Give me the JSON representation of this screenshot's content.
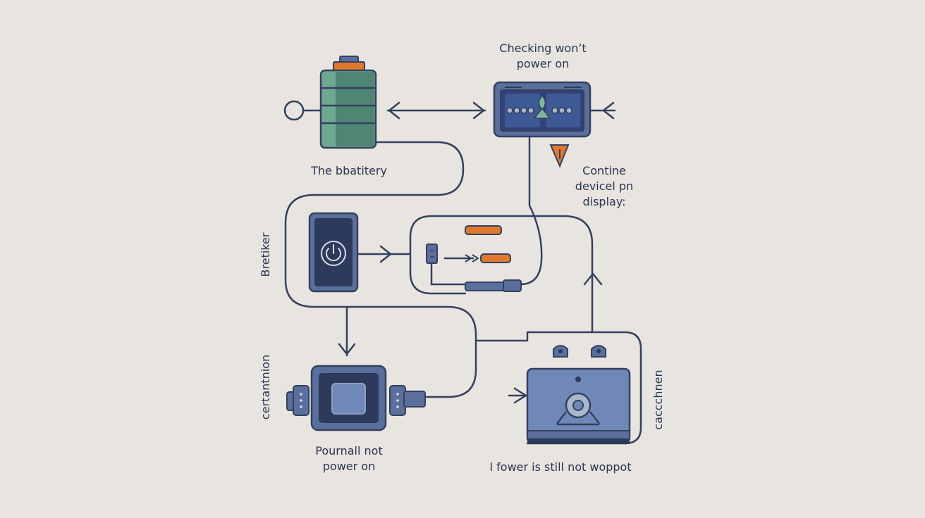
{
  "labels": {
    "top_right": "Checking won’t\npower on",
    "battery": "The bbatitery",
    "right_mid": "Contine\ndevicel pn\ndisplay:",
    "left_vertical": "Bretiker",
    "left_lower_vertical": "certantnion",
    "bottom_left": "Pournall not\npower on",
    "bottom_right": "I fower is still not woppot",
    "right_vertical": "caccchnen"
  },
  "colors": {
    "background": "#e8e5e0",
    "line": "#34405e",
    "panel": "#5a6f9c",
    "panel_dark": "#2d3a5c",
    "battery_green": "#6fa892",
    "battery_green_dark": "#4f8673",
    "accent_orange": "#e0782e"
  },
  "icons": {
    "battery": "battery-icon",
    "monitor": "screen-icon",
    "warning": "warning-arrow-icon",
    "phone": "phone-power-icon",
    "cable": "charging-cable-icon",
    "chip": "chip-icon",
    "device": "device-speaker-icon"
  }
}
